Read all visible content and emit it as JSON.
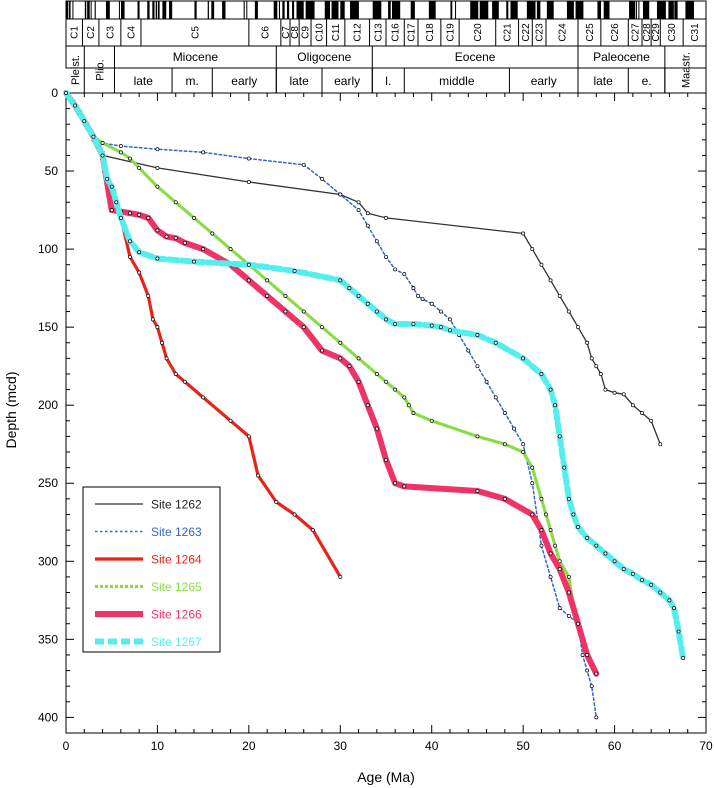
{
  "chart_data": {
    "type": "line",
    "xlabel": "Age (Ma)",
    "ylabel": "Depth (mcd)",
    "xlim": [
      0,
      70
    ],
    "ylim": [
      0,
      410
    ],
    "x_ticks": [
      0,
      10,
      20,
      30,
      40,
      50,
      60,
      70
    ],
    "y_ticks": [
      0,
      50,
      100,
      150,
      200,
      250,
      300,
      350,
      400
    ],
    "y_inverted": true,
    "grid": false,
    "legend_position": "bottom-left",
    "chrons": [
      "C1",
      "C2",
      "C3",
      "C4",
      "C5",
      "C6",
      "C7",
      "C8",
      "C9",
      "C10",
      "C11",
      "C12",
      "C13",
      "C16",
      "C17",
      "C18",
      "C19",
      "C20",
      "C21",
      "C22",
      "C23",
      "C24",
      "C25",
      "C26",
      "C27",
      "C28",
      "C29",
      "C30",
      "C31"
    ],
    "epochs": [
      "Pleist.",
      "Plio.",
      "Miocene",
      "Oligocene",
      "Eocene",
      "Paleocene",
      "Maastr."
    ],
    "subepochs": [
      "late",
      "m.",
      "early",
      "late",
      "early",
      "l.",
      "middle",
      "early",
      "late",
      "e."
    ],
    "series": [
      {
        "name": "Site 1262",
        "color": "#333333",
        "style": "solid-thin",
        "x": [
          0,
          1,
          2,
          3,
          4,
          10,
          20,
          30,
          32,
          33,
          35,
          50,
          51,
          52,
          53,
          54,
          55,
          56,
          57,
          57.5,
          58,
          58.5,
          59,
          60,
          61,
          62,
          63,
          64,
          65
        ],
        "y": [
          0,
          8,
          18,
          30,
          40,
          48,
          57,
          65,
          70,
          77,
          80,
          90,
          100,
          110,
          120,
          130,
          140,
          150,
          160,
          170,
          175,
          180,
          190,
          192,
          193,
          200,
          205,
          210,
          225
        ]
      },
      {
        "name": "Site 1263",
        "color": "#3366cc",
        "style": "dotted",
        "x": [
          0,
          1,
          2,
          3,
          4,
          6,
          10,
          15,
          20,
          26,
          28,
          30,
          32,
          33,
          34,
          35,
          36,
          37,
          38,
          38.5,
          39,
          40,
          41,
          42,
          43,
          44,
          45,
          46,
          47,
          48,
          49,
          50,
          51,
          52,
          53,
          54,
          55,
          56,
          56.5,
          57,
          57.5,
          58
        ],
        "y": [
          0,
          8,
          18,
          28,
          32,
          34,
          36,
          38,
          42,
          46,
          55,
          65,
          75,
          85,
          95,
          105,
          113,
          116,
          125,
          130,
          132,
          135,
          140,
          145,
          155,
          165,
          175,
          185,
          195,
          205,
          215,
          225,
          250,
          290,
          310,
          330,
          335,
          340,
          360,
          370,
          380,
          400
        ]
      },
      {
        "name": "Site 1264",
        "color": "#e8231a",
        "style": "solid-thick",
        "x": [
          0,
          1,
          2,
          3,
          3.5,
          4,
          4.5,
          5,
          6,
          7,
          8,
          9,
          9.5,
          10,
          10.5,
          11,
          12,
          13,
          15,
          18,
          20,
          21,
          23,
          25,
          27,
          30
        ],
        "y": [
          0,
          8,
          18,
          30,
          35,
          38,
          55,
          60,
          80,
          105,
          115,
          130,
          145,
          150,
          160,
          170,
          180,
          185,
          195,
          210,
          220,
          245,
          262,
          270,
          280,
          310
        ]
      },
      {
        "name": "Site 1265",
        "color": "#88dd44",
        "style": "dashed",
        "x": [
          0,
          1,
          2,
          3,
          4,
          6,
          7,
          8,
          10,
          12,
          14,
          16,
          18,
          20,
          22,
          24,
          26,
          28,
          30,
          32,
          34,
          35,
          36,
          37,
          37.5,
          38,
          40,
          45,
          48,
          50,
          51,
          52,
          52.5,
          53,
          53.5,
          54,
          55,
          55.5,
          56
        ],
        "y": [
          0,
          8,
          18,
          28,
          32,
          38,
          42,
          48,
          60,
          70,
          80,
          90,
          100,
          110,
          120,
          130,
          140,
          150,
          160,
          170,
          180,
          185,
          190,
          195,
          200,
          205,
          210,
          220,
          225,
          230,
          240,
          260,
          270,
          280,
          290,
          300,
          310,
          330,
          340
        ]
      },
      {
        "name": "Site 1266",
        "color": "#ee3366",
        "style": "solid-heavy",
        "x": [
          0,
          1,
          2,
          3,
          4,
          5,
          6,
          7,
          8,
          9,
          10,
          11,
          12,
          13,
          15,
          18,
          20,
          22,
          24,
          26,
          28,
          30,
          31,
          32,
          33,
          34,
          35,
          36,
          37,
          45,
          48,
          51,
          52,
          53,
          54,
          55,
          56,
          57,
          58
        ],
        "y": [
          0,
          8,
          18,
          28,
          40,
          75,
          76,
          77,
          78,
          80,
          88,
          92,
          93,
          96,
          100,
          110,
          120,
          130,
          140,
          150,
          165,
          170,
          175,
          185,
          200,
          215,
          235,
          250,
          252,
          255,
          260,
          270,
          280,
          295,
          305,
          320,
          340,
          360,
          372
        ]
      },
      {
        "name": "Site 1267",
        "color": "#55eeee",
        "style": "dashed-thick",
        "x": [
          0,
          1,
          2,
          3,
          4,
          4.5,
          5,
          5.5,
          6,
          7,
          8,
          10,
          14,
          20,
          25,
          30,
          31,
          32,
          33,
          34,
          35,
          36,
          38,
          40,
          41,
          42,
          45,
          47,
          50,
          52,
          53,
          53.5,
          54,
          54.5,
          55,
          55.5,
          56,
          57,
          58,
          59,
          60,
          61,
          62,
          63,
          64,
          65,
          66,
          66.5,
          67,
          67.5
        ],
        "y": [
          0,
          8,
          18,
          28,
          40,
          55,
          60,
          70,
          80,
          95,
          102,
          106,
          108,
          110,
          114,
          120,
          125,
          130,
          135,
          140,
          145,
          148,
          148,
          149,
          150,
          152,
          155,
          160,
          170,
          180,
          190,
          200,
          220,
          240,
          260,
          270,
          278,
          285,
          290,
          295,
          300,
          305,
          308,
          312,
          315,
          320,
          325,
          330,
          345,
          362
        ]
      }
    ]
  }
}
